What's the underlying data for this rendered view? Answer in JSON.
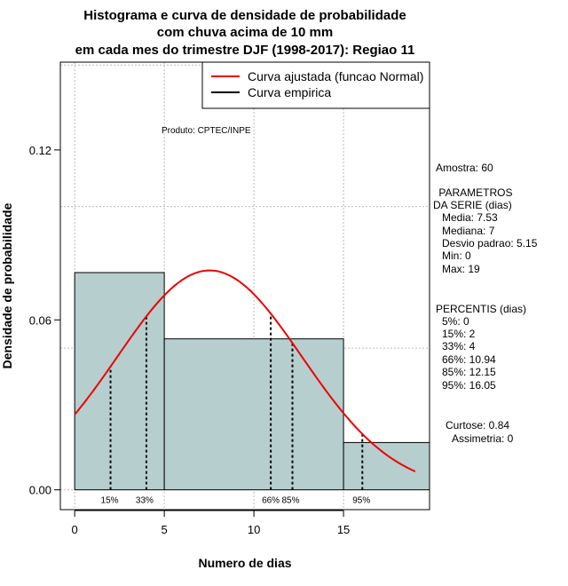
{
  "chart_data": {
    "type": "bar",
    "title_lines": [
      "Histograma e curva de densidade de probabilidade",
      "com chuva acima de 10 mm",
      "em cada mes do trimestre DJF (1998-2017): Regiao 11"
    ],
    "xlabel": "Numero de dias",
    "ylabel": "Densidade de probabilidade",
    "xlim": [
      -0.8,
      19.8
    ],
    "ylim": [
      -0.007,
      0.151
    ],
    "xticks": [
      0,
      5,
      10,
      15
    ],
    "yticks": [
      0.0,
      0.06,
      0.12
    ],
    "ytick_labels": [
      "0.00",
      "0.06",
      "0.12"
    ],
    "xgrid": [
      0,
      5,
      10,
      15
    ],
    "ygrid": [
      0,
      0.05,
      0.1,
      0.15
    ],
    "bars": [
      {
        "x0": 0,
        "x1": 5,
        "density": 0.0767
      },
      {
        "x0": 5,
        "x1": 15,
        "density": 0.0533
      },
      {
        "x0": 15,
        "x1": 20,
        "density": 0.0167
      }
    ],
    "normal_curve": {
      "mean": 7.53,
      "sd": 5.15,
      "x_from": 0,
      "x_to": 19
    },
    "percentile_lines": [
      {
        "label": "15%",
        "x": 2
      },
      {
        "label": "33%",
        "x": 4
      },
      {
        "label": "66%",
        "x": 10.94
      },
      {
        "label": "85%",
        "x": 12.15
      },
      {
        "label": "95%",
        "x": 16.05
      }
    ],
    "legend": {
      "position": "top-right",
      "entries": [
        {
          "label": "Curva ajustada (funcao Normal)",
          "color": "#ee0000"
        },
        {
          "label": "Curva empirica",
          "color": "#000000"
        }
      ]
    },
    "annotation": "Produto: CPTEC/INPE",
    "colors": {
      "bar_fill": "#b6cece",
      "curve": "#ee0000",
      "grid": "#bbbbbb"
    }
  },
  "side_panel": {
    "amostra": "Amostra: 60",
    "param_header": [
      " PARAMETROS",
      "DA SERIE (dias)"
    ],
    "params": [
      "Media: 7.53",
      "Mediana: 7",
      "Desvio padrao: 5.15",
      "Min: 0",
      "Max: 19"
    ],
    "percentis_header": "PERCENTIS (dias)",
    "percentis": [
      "5%: 0",
      "15%: 2",
      "33%: 4",
      "66%: 10.94",
      "85%: 12.15",
      "95%: 16.05"
    ],
    "curtose": "Curtose: 0.84",
    "assimetria": "Assimetria: 0"
  }
}
